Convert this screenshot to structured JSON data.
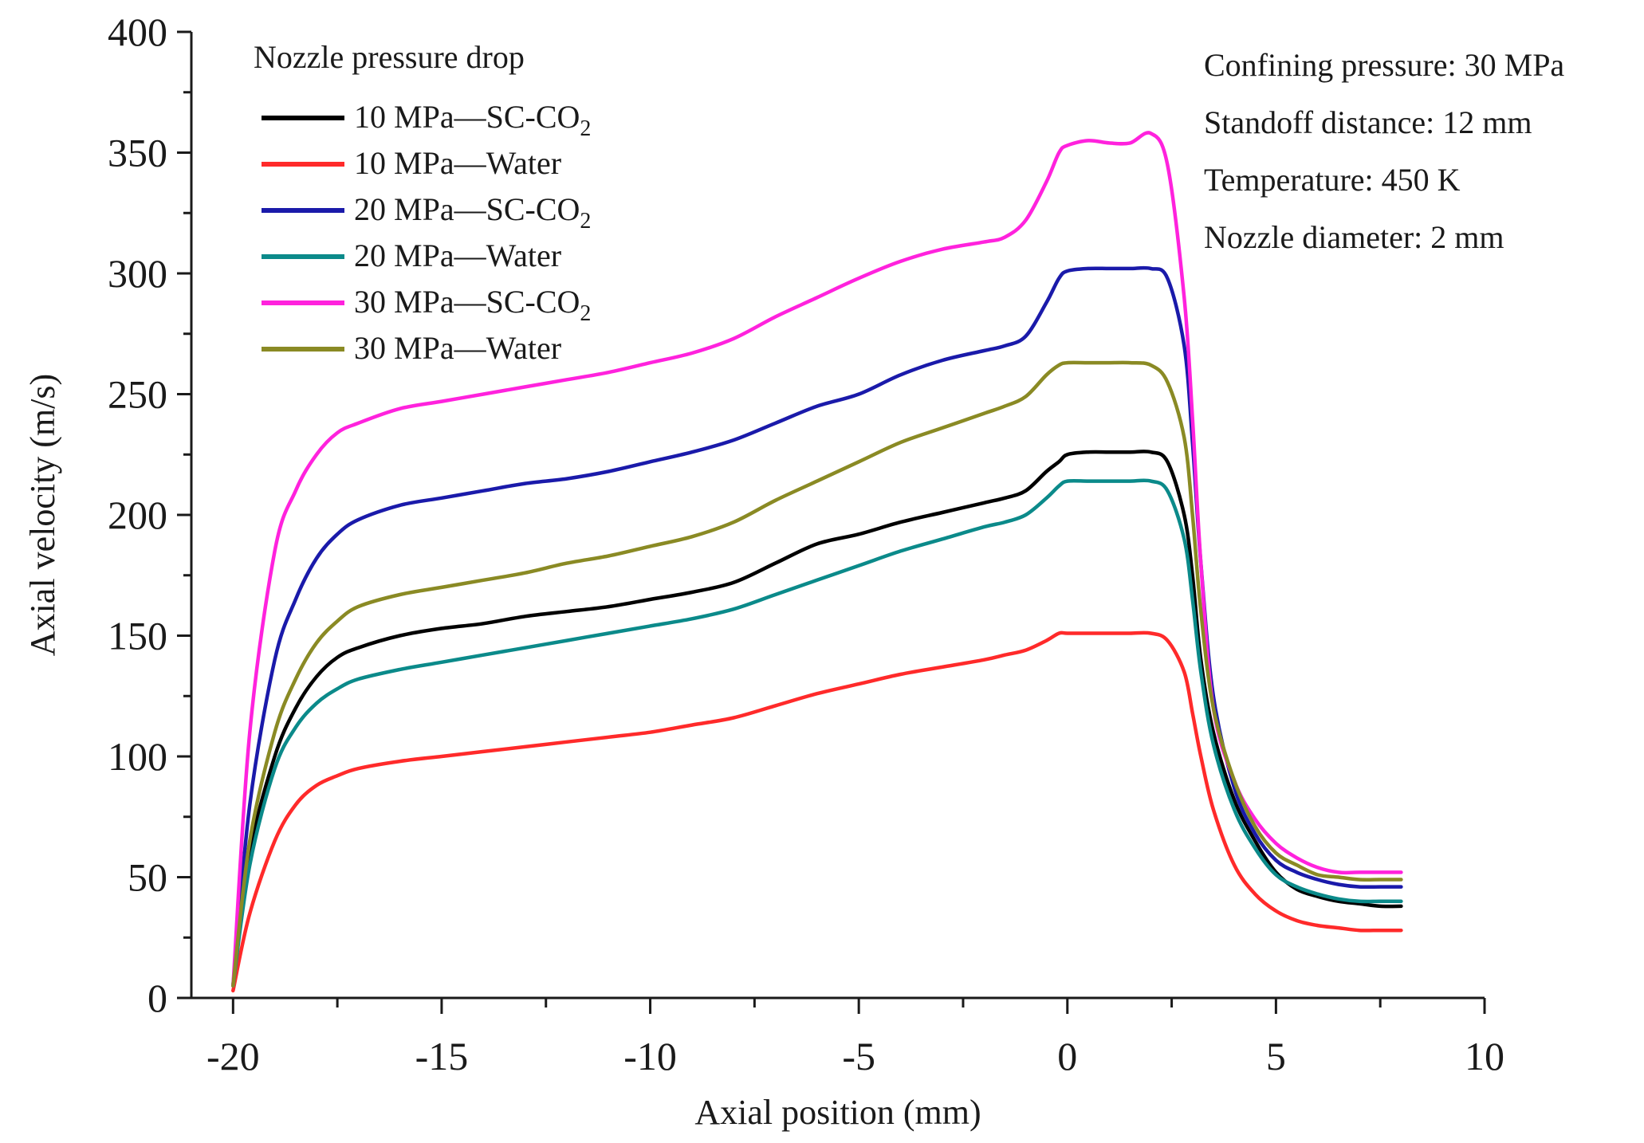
{
  "chart_data": {
    "type": "line",
    "title": "",
    "xlabel": "Axial position (mm)",
    "ylabel": "Axial velocity (m/s)",
    "xlim": [
      -21,
      10
    ],
    "ylim": [
      0,
      400
    ],
    "xticks": [
      -20,
      -15,
      -10,
      -5,
      0,
      5,
      10
    ],
    "xtick_labels": [
      "-20",
      "-15",
      "-10",
      "-5",
      "0",
      "5",
      "10"
    ],
    "yticks": [
      0,
      50,
      100,
      150,
      200,
      250,
      300,
      350,
      400
    ],
    "ytick_labels": [
      "0",
      "50",
      "100",
      "150",
      "200",
      "250",
      "300",
      "350",
      "400"
    ],
    "grid": false,
    "legend": {
      "title": "Nozzle pressure drop",
      "position": "top-left",
      "separator": "—"
    },
    "annotations": [
      "Confining pressure: 30 MPa",
      "Standoff distance: 12 mm",
      "Temperature: 450 K",
      "Nozzle diameter: 2 mm"
    ],
    "series": [
      {
        "name": "10 MPa—SC-CO2",
        "label_pressure": "10 MPa",
        "label_fluid": "SC-CO",
        "label_sub": "2",
        "color": "#000000",
        "x": [
          -20,
          -19.6,
          -19,
          -18.5,
          -18,
          -17.5,
          -17,
          -16,
          -15,
          -14,
          -13,
          -12,
          -11,
          -10,
          -9,
          -8,
          -7,
          -6,
          -5,
          -4,
          -3,
          -2,
          -1.5,
          -1,
          -0.5,
          -0.2,
          0,
          0.5,
          1,
          1.5,
          2,
          2.4,
          2.8,
          3,
          3.2,
          3.5,
          4,
          4.5,
          5,
          5.5,
          6,
          6.5,
          7,
          7.5,
          8
        ],
        "y": [
          5,
          60,
          100,
          120,
          133,
          141,
          145,
          150,
          153,
          155,
          158,
          160,
          162,
          165,
          168,
          172,
          180,
          188,
          192,
          197,
          201,
          205,
          207,
          210,
          218,
          222,
          225,
          226,
          226,
          226,
          226,
          222,
          200,
          175,
          140,
          110,
          82,
          65,
          52,
          45,
          42,
          40,
          39,
          38,
          38
        ]
      },
      {
        "name": "10 MPa—Water",
        "label_pressure": "10 MPa",
        "label_fluid": "Water",
        "label_sub": "",
        "color": "#ff2a2a",
        "x": [
          -20,
          -19.6,
          -19,
          -18.5,
          -18,
          -17.5,
          -17,
          -16,
          -15,
          -14,
          -13,
          -12,
          -11,
          -10,
          -9,
          -8,
          -7,
          -6,
          -5,
          -4,
          -3,
          -2,
          -1.5,
          -1,
          -0.5,
          -0.2,
          0,
          0.5,
          1,
          1.5,
          2,
          2.4,
          2.8,
          3,
          3.2,
          3.5,
          4,
          4.5,
          5,
          5.5,
          6,
          6.5,
          7,
          7.5,
          8
        ],
        "y": [
          3,
          35,
          65,
          80,
          88,
          92,
          95,
          98,
          100,
          102,
          104,
          106,
          108,
          110,
          113,
          116,
          121,
          126,
          130,
          134,
          137,
          140,
          142,
          144,
          148,
          151,
          151,
          151,
          151,
          151,
          151,
          148,
          135,
          118,
          100,
          78,
          55,
          43,
          36,
          32,
          30,
          29,
          28,
          28,
          28
        ]
      },
      {
        "name": "20 MPa—SC-CO2",
        "label_pressure": "20 MPa",
        "label_fluid": "SC-CO",
        "label_sub": "2",
        "color": "#1a1aaa",
        "x": [
          -20,
          -19.6,
          -19,
          -18.5,
          -18,
          -17.5,
          -17,
          -16,
          -15,
          -14,
          -13,
          -12,
          -11,
          -10,
          -9,
          -8,
          -7,
          -6,
          -5,
          -4,
          -3,
          -2,
          -1.5,
          -1,
          -0.5,
          -0.2,
          0,
          0.5,
          1,
          1.5,
          2,
          2.4,
          2.8,
          3,
          3.2,
          3.5,
          4,
          4.5,
          5,
          5.5,
          6,
          6.5,
          7,
          7.5,
          8
        ],
        "y": [
          5,
          80,
          140,
          165,
          182,
          192,
          198,
          204,
          207,
          210,
          213,
          215,
          218,
          222,
          226,
          231,
          238,
          245,
          250,
          258,
          264,
          268,
          270,
          274,
          288,
          298,
          301,
          302,
          302,
          302,
          302,
          298,
          270,
          230,
          180,
          125,
          87,
          68,
          57,
          52,
          49,
          47,
          46,
          46,
          46
        ]
      },
      {
        "name": "20 MPa—Water",
        "label_pressure": "20 MPa",
        "label_fluid": "Water",
        "label_sub": "",
        "color": "#0b8a8a",
        "x": [
          -20,
          -19.6,
          -19,
          -18.5,
          -18,
          -17.5,
          -17,
          -16,
          -15,
          -14,
          -13,
          -12,
          -11,
          -10,
          -9,
          -8,
          -7,
          -6,
          -5,
          -4,
          -3,
          -2,
          -1.5,
          -1,
          -0.5,
          -0.2,
          0,
          0.5,
          1,
          1.5,
          2,
          2.4,
          2.8,
          3,
          3.2,
          3.5,
          4,
          4.5,
          5,
          5.5,
          6,
          6.5,
          7,
          7.5,
          8
        ],
        "y": [
          5,
          55,
          95,
          112,
          122,
          128,
          132,
          136,
          139,
          142,
          145,
          148,
          151,
          154,
          157,
          161,
          167,
          173,
          179,
          185,
          190,
          195,
          197,
          200,
          207,
          212,
          214,
          214,
          214,
          214,
          214,
          210,
          190,
          165,
          135,
          105,
          78,
          62,
          51,
          46,
          43,
          41,
          40,
          40,
          40
        ]
      },
      {
        "name": "30 MPa—SC-CO2",
        "label_pressure": "30 MPa",
        "label_fluid": "SC-CO",
        "label_sub": "2",
        "color": "#ff22dd",
        "x": [
          -20,
          -19.6,
          -19,
          -18.5,
          -18,
          -17.5,
          -17,
          -16,
          -15,
          -14,
          -13,
          -12,
          -11,
          -10,
          -9,
          -8,
          -7,
          -6,
          -5,
          -4,
          -3,
          -2,
          -1.5,
          -1,
          -0.5,
          -0.2,
          0,
          0.5,
          1,
          1.5,
          2,
          2.4,
          2.8,
          3,
          3.2,
          3.5,
          4,
          4.5,
          5,
          5.5,
          6,
          6.5,
          7,
          7.5,
          8
        ],
        "y": [
          5,
          110,
          185,
          210,
          225,
          234,
          238,
          244,
          247,
          250,
          253,
          256,
          259,
          263,
          267,
          273,
          282,
          290,
          298,
          305,
          310,
          313,
          315,
          322,
          338,
          350,
          353,
          355,
          354,
          354,
          358,
          345,
          290,
          240,
          180,
          120,
          90,
          74,
          64,
          58,
          54,
          52,
          52,
          52,
          52
        ]
      },
      {
        "name": "30 MPa—Water",
        "label_pressure": "30 MPa",
        "label_fluid": "Water",
        "label_sub": "",
        "color": "#8a8a24",
        "x": [
          -20,
          -19.6,
          -19,
          -18.5,
          -18,
          -17.5,
          -17,
          -16,
          -15,
          -14,
          -13,
          -12,
          -11,
          -10,
          -9,
          -8,
          -7,
          -6,
          -5,
          -4,
          -3,
          -2,
          -1.5,
          -1,
          -0.5,
          -0.2,
          0,
          0.5,
          1,
          1.5,
          2,
          2.4,
          2.8,
          3,
          3.2,
          3.5,
          4,
          4.5,
          5,
          5.5,
          6,
          6.5,
          7,
          7.5,
          8
        ],
        "y": [
          5,
          65,
          110,
          132,
          147,
          156,
          162,
          167,
          170,
          173,
          176,
          180,
          183,
          187,
          191,
          197,
          206,
          214,
          222,
          230,
          236,
          242,
          245,
          249,
          258,
          262,
          263,
          263,
          263,
          263,
          262,
          255,
          232,
          200,
          160,
          120,
          90,
          71,
          60,
          55,
          51,
          50,
          49,
          49,
          49
        ]
      }
    ]
  }
}
